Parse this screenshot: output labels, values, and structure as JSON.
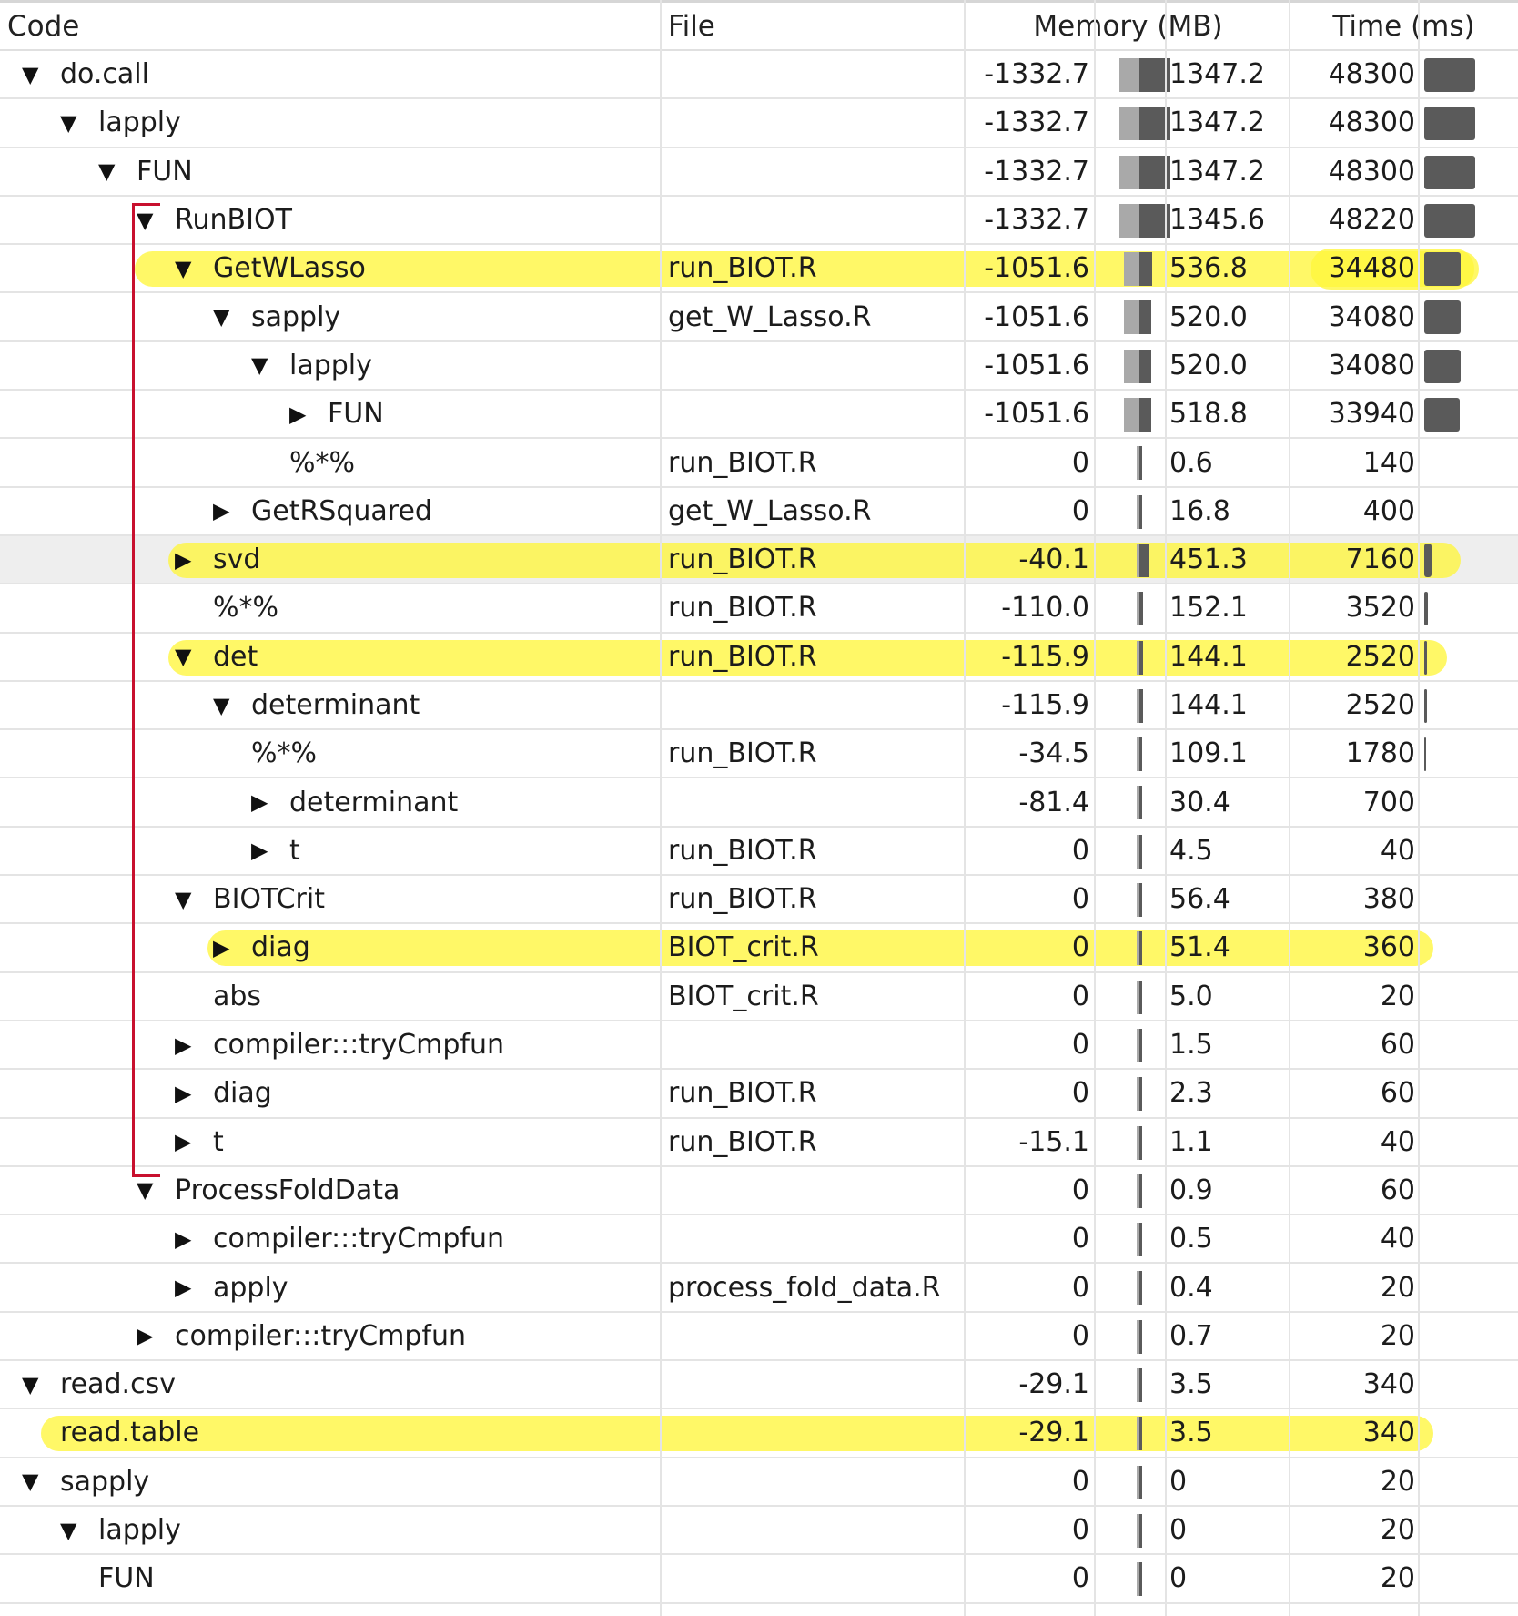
{
  "header": {
    "code": "Code",
    "file": "File",
    "memory": "Memory (MB)",
    "time": "Time (ms)"
  },
  "rows": [
    {
      "twisty": "▼",
      "code": "do.call",
      "file": "",
      "mem_neg": "-1332.7",
      "mem_pos": "1347.2",
      "time": "48300"
    },
    {
      "twisty": "▼",
      "code": "lapply",
      "file": "",
      "mem_neg": "-1332.7",
      "mem_pos": "1347.2",
      "time": "48300"
    },
    {
      "twisty": "▼",
      "code": "FUN",
      "file": "",
      "mem_neg": "-1332.7",
      "mem_pos": "1347.2",
      "time": "48300"
    },
    {
      "twisty": "▼",
      "code": "RunBIOT",
      "file": "",
      "mem_neg": "-1332.7",
      "mem_pos": "1345.6",
      "time": "48220"
    },
    {
      "twisty": "▼",
      "code": "GetWLasso",
      "file": "run_BIOT.R",
      "mem_neg": "-1051.6",
      "mem_pos": "536.8",
      "time": "34480"
    },
    {
      "twisty": "▼",
      "code": "sapply",
      "file": "get_W_Lasso.R",
      "mem_neg": "-1051.6",
      "mem_pos": "520.0",
      "time": "34080"
    },
    {
      "twisty": "▼",
      "code": "lapply",
      "file": "",
      "mem_neg": "-1051.6",
      "mem_pos": "520.0",
      "time": "34080"
    },
    {
      "twisty": "▶",
      "code": "FUN",
      "file": "",
      "mem_neg": "-1051.6",
      "mem_pos": "518.8",
      "time": "33940"
    },
    {
      "twisty": "",
      "code": "%*%",
      "file": "run_BIOT.R",
      "mem_neg": "0",
      "mem_pos": "0.6",
      "time": "140"
    },
    {
      "twisty": "▶",
      "code": "GetRSquared",
      "file": "get_W_Lasso.R",
      "mem_neg": "0",
      "mem_pos": "16.8",
      "time": "400"
    },
    {
      "twisty": "▶",
      "code": "svd",
      "file": "run_BIOT.R",
      "mem_neg": "-40.1",
      "mem_pos": "451.3",
      "time": "7160"
    },
    {
      "twisty": "",
      "code": "%*%",
      "file": "run_BIOT.R",
      "mem_neg": "-110.0",
      "mem_pos": "152.1",
      "time": "3520"
    },
    {
      "twisty": "▼",
      "code": "det",
      "file": "run_BIOT.R",
      "mem_neg": "-115.9",
      "mem_pos": "144.1",
      "time": "2520"
    },
    {
      "twisty": "▼",
      "code": "determinant",
      "file": "",
      "mem_neg": "-115.9",
      "mem_pos": "144.1",
      "time": "2520"
    },
    {
      "twisty": "",
      "code": "%*%",
      "file": "run_BIOT.R",
      "mem_neg": "-34.5",
      "mem_pos": "109.1",
      "time": "1780"
    },
    {
      "twisty": "▶",
      "code": "determinant",
      "file": "",
      "mem_neg": "-81.4",
      "mem_pos": "30.4",
      "time": "700"
    },
    {
      "twisty": "▶",
      "code": "t",
      "file": "run_BIOT.R",
      "mem_neg": "0",
      "mem_pos": "4.5",
      "time": "40"
    },
    {
      "twisty": "▼",
      "code": "BIOTCrit",
      "file": "run_BIOT.R",
      "mem_neg": "0",
      "mem_pos": "56.4",
      "time": "380"
    },
    {
      "twisty": "▶",
      "code": "diag",
      "file": "BIOT_crit.R",
      "mem_neg": "0",
      "mem_pos": "51.4",
      "time": "360"
    },
    {
      "twisty": "",
      "code": "abs",
      "file": "BIOT_crit.R",
      "mem_neg": "0",
      "mem_pos": "5.0",
      "time": "20"
    },
    {
      "twisty": "▶",
      "code": "compiler:::tryCmpfun",
      "file": "",
      "mem_neg": "0",
      "mem_pos": "1.5",
      "time": "60"
    },
    {
      "twisty": "▶",
      "code": "diag",
      "file": "run_BIOT.R",
      "mem_neg": "0",
      "mem_pos": "2.3",
      "time": "60"
    },
    {
      "twisty": "▶",
      "code": "t",
      "file": "run_BIOT.R",
      "mem_neg": "-15.1",
      "mem_pos": "1.1",
      "time": "40"
    },
    {
      "twisty": "▼",
      "code": "ProcessFoldData",
      "file": "",
      "mem_neg": "0",
      "mem_pos": "0.9",
      "time": "60"
    },
    {
      "twisty": "▶",
      "code": "compiler:::tryCmpfun",
      "file": "",
      "mem_neg": "0",
      "mem_pos": "0.5",
      "time": "40"
    },
    {
      "twisty": "▶",
      "code": "apply",
      "file": "process_fold_data.R",
      "mem_neg": "0",
      "mem_pos": "0.4",
      "time": "20"
    },
    {
      "twisty": "▶",
      "code": "compiler:::tryCmpfun",
      "file": "",
      "mem_neg": "0",
      "mem_pos": "0.7",
      "time": "20"
    },
    {
      "twisty": "▼",
      "code": "read.csv",
      "file": "",
      "mem_neg": "-29.1",
      "mem_pos": "3.5",
      "time": "340"
    },
    {
      "twisty": "",
      "code": "read.table",
      "file": "",
      "mem_neg": "-29.1",
      "mem_pos": "3.5",
      "time": "340"
    },
    {
      "twisty": "▼",
      "code": "sapply",
      "file": "",
      "mem_neg": "0",
      "mem_pos": "0",
      "time": "20"
    },
    {
      "twisty": "▼",
      "code": "lapply",
      "file": "",
      "mem_neg": "0",
      "mem_pos": "0",
      "time": "20"
    },
    {
      "twisty": "",
      "code": "FUN",
      "file": "",
      "mem_neg": "0",
      "mem_pos": "0",
      "time": "20"
    }
  ]
}
